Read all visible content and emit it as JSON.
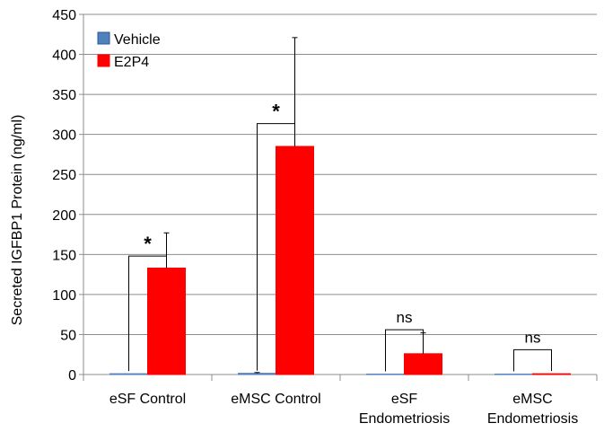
{
  "chart_data": {
    "type": "bar",
    "ylabel": "Secreted IGFBP1 Protein (ng/ml)",
    "ylim": [
      0,
      450
    ],
    "yticks": [
      0,
      50,
      100,
      150,
      200,
      250,
      300,
      350,
      400,
      450
    ],
    "grid": true,
    "legend_position": "top-left",
    "categories": [
      [
        "eSF Control"
      ],
      [
        "eMSC Control"
      ],
      [
        "eSF",
        "Endometriosis"
      ],
      [
        "eMSC",
        "Endometriosis"
      ]
    ],
    "series": [
      {
        "name": "Vehicle",
        "color": "#4f81bd",
        "values": [
          1,
          1.5,
          0.5,
          0.5
        ],
        "error": [
          0,
          1,
          0,
          0
        ]
      },
      {
        "name": "E2P4",
        "color": "#ff0000",
        "values": [
          133,
          285,
          26,
          1
        ],
        "error": [
          44,
          136,
          26,
          0
        ]
      }
    ],
    "annotations": [
      {
        "category": 0,
        "label": "*"
      },
      {
        "category": 1,
        "label": "*"
      },
      {
        "category": 2,
        "label": "ns"
      },
      {
        "category": 3,
        "label": "ns"
      }
    ]
  }
}
